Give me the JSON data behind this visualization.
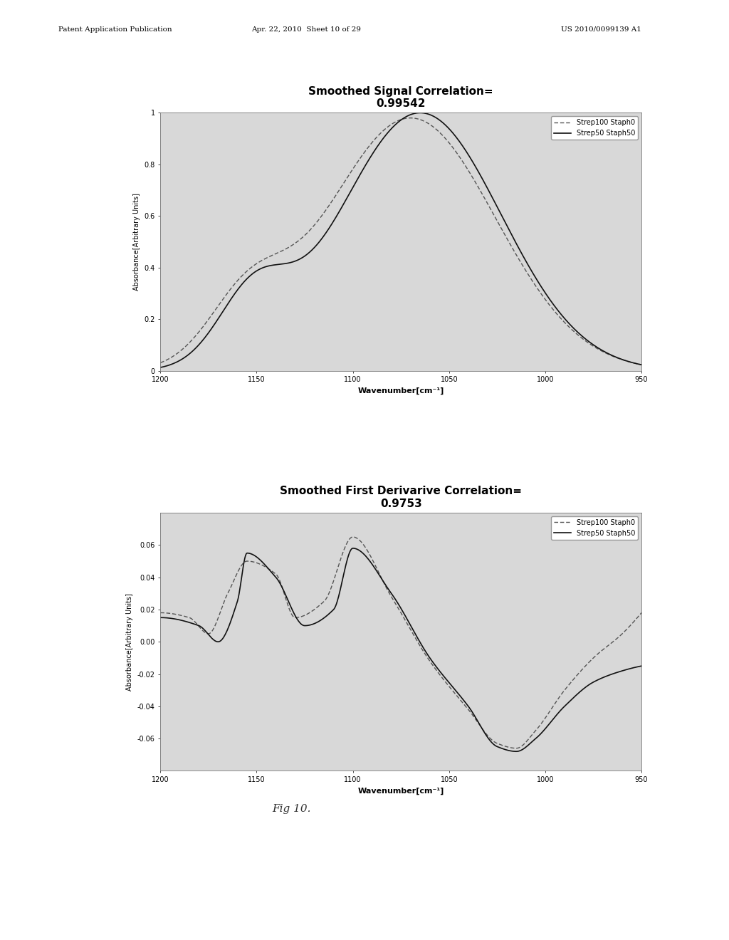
{
  "page_header_left": "Patent Application Publication",
  "page_header_mid": "Apr. 22, 2010  Sheet 10 of 29",
  "page_header_right": "US 2010/0099139 A1",
  "fig_label": "Fig 10.",
  "plot1": {
    "title": "Smoothed Signal Correlation=\n0.99542",
    "xlabel": "Wavenumber[cm⁻¹]",
    "ylabel": "Absorbance[Arbitrary Units]",
    "xlim": [
      1200,
      950
    ],
    "ylim": [
      0,
      1
    ],
    "yticks": [
      0,
      0.2,
      0.4,
      0.6,
      0.8,
      1
    ],
    "xticks": [
      1200,
      1150,
      1100,
      1050,
      1000,
      950
    ],
    "legend1": "Strep100 Staph0",
    "legend2": "Strep50 Staph50"
  },
  "plot2": {
    "title": "Smoothed First Derivarive Correlation=\n0.9753",
    "xlabel": "Wavenumber[cm⁻¹]",
    "ylabel": "Absorbance[Arbitrary Units]",
    "xlim": [
      1200,
      950
    ],
    "ylim": [
      -0.08,
      0.08
    ],
    "yticks": [
      -0.06,
      -0.04,
      -0.02,
      0,
      0.02,
      0.04,
      0.06
    ],
    "xticks": [
      1200,
      1150,
      1100,
      1050,
      1000,
      950
    ],
    "legend1": "Strep100 Staph0",
    "legend2": "Strep50 Staph50"
  },
  "plot_bg": "#d8d8d8",
  "paper_color": "#ffffff",
  "line_dark": "#111111",
  "line_dash": "#555555"
}
